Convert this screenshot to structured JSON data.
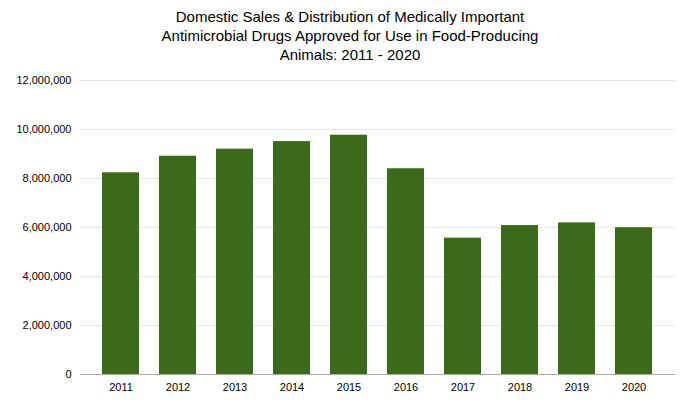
{
  "chart_data": {
    "type": "bar",
    "title": "Domestic Sales & Distribution of Medically Important\nAntimicrobial Drugs Approved for Use in Food-Producing\nAnimals: 2011 - 2020",
    "categories": [
      "2011",
      "2012",
      "2013",
      "2014",
      "2015",
      "2016",
      "2017",
      "2018",
      "2019",
      "2020"
    ],
    "values": [
      8233000,
      8909000,
      9197000,
      9507000,
      9767000,
      8398000,
      5565000,
      6079000,
      6189000,
      5993000
    ],
    "color": "#3a6b1a",
    "ylim": [
      0,
      12000000
    ],
    "yticks": [
      0,
      {
        "value": 2000000,
        "label": "2,000,000"
      },
      {
        "value": 4000000,
        "label": "4,000,000"
      },
      {
        "value": 6000000,
        "label": "6,000,000"
      },
      {
        "value": 8000000,
        "label": "8,000,000"
      },
      {
        "value": 10000000,
        "label": "10,000,000"
      },
      {
        "value": 12000000,
        "label": "12,000,000"
      }
    ],
    "grid": true
  }
}
